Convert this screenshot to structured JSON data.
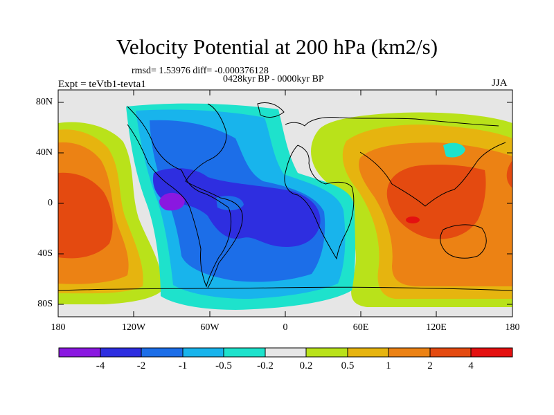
{
  "title": "Velocity Potential at 200 hPa (km2/s)",
  "stats_line": "rmsd= 1.53976  diff= -0.000376128",
  "period": "0428kyr BP - 0000kyr BP",
  "experiment": "Expt = teVtb1-tevta1",
  "season": "JJA",
  "map": {
    "y_ticks": [
      "80N",
      "40N",
      "0",
      "40S",
      "80S"
    ],
    "x_ticks": [
      "180",
      "120W",
      "60W",
      "0",
      "60E",
      "120E",
      "180"
    ]
  },
  "colorbar": {
    "labels": [
      "-4",
      "-2",
      "-1",
      "-0.5",
      "-0.2",
      "0.2",
      "0.5",
      "1",
      "2",
      "4"
    ],
    "colors": [
      "#8a18e0",
      "#2e2ee0",
      "#1c6ee8",
      "#18b4ec",
      "#1ee2cc",
      "#e6e6e6",
      "#b9e21a",
      "#e6b40f",
      "#ec8214",
      "#e44a10",
      "#e41010"
    ]
  },
  "colors": {
    "background": "#ffffff",
    "neutral": "#e6e6e6"
  }
}
